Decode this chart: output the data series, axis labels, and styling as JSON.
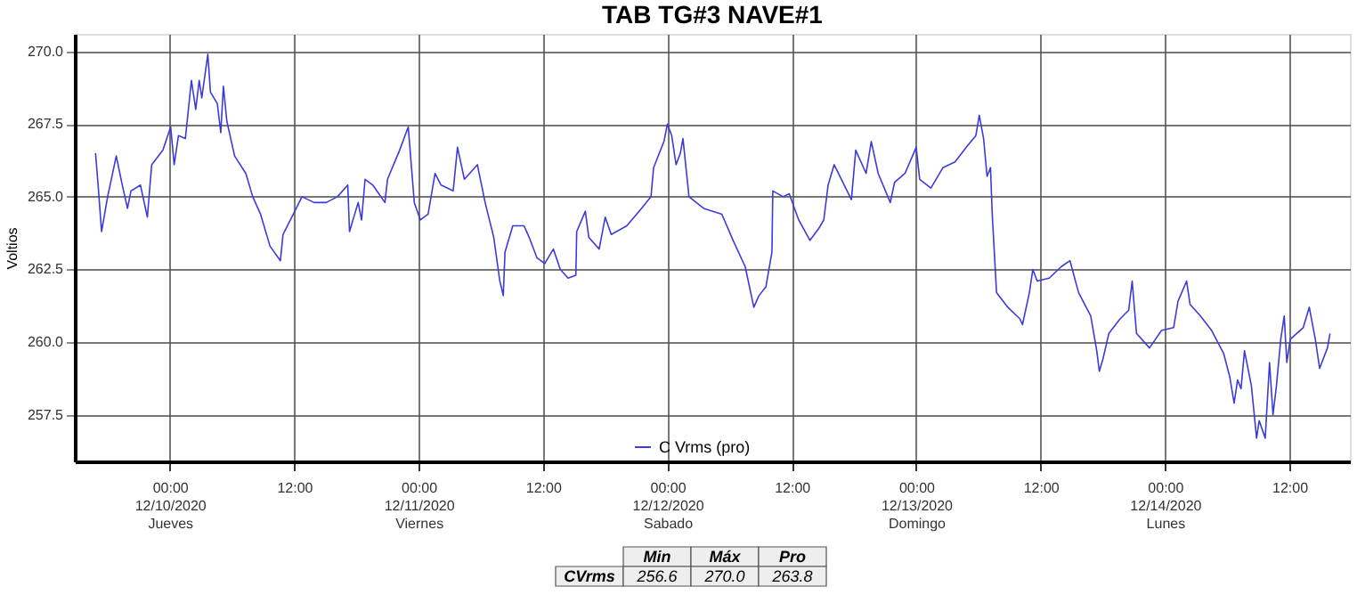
{
  "chart_data": {
    "type": "line",
    "title": "TAB TG#3 NAVE#1",
    "ylabel": "Voltios",
    "series": [
      {
        "name": "C Vrms (pro)",
        "color": "#3b3bdc",
        "x": [
          "2020-12-09T16:50",
          "2020-12-09T17:05",
          "2020-12-09T17:25",
          "2020-12-09T18:00",
          "2020-12-09T18:50",
          "2020-12-09T19:25",
          "2020-12-09T19:55",
          "2020-12-09T20:15",
          "2020-12-09T21:10",
          "2020-12-09T21:50",
          "2020-12-09T22:15",
          "2020-12-09T23:20",
          "2020-12-10T00:05",
          "2020-12-10T00:25",
          "2020-12-10T00:50",
          "2020-12-10T01:30",
          "2020-12-10T02:05",
          "2020-12-10T02:30",
          "2020-12-10T02:50",
          "2020-12-10T03:05",
          "2020-12-10T03:40",
          "2020-12-10T03:55",
          "2020-12-10T04:35",
          "2020-12-10T04:55",
          "2020-12-10T05:10",
          "2020-12-10T05:30",
          "2020-12-10T06:15",
          "2020-12-10T07:20",
          "2020-12-10T08:00",
          "2020-12-10T08:45",
          "2020-12-10T09:40",
          "2020-12-10T10:40",
          "2020-12-10T10:55",
          "2020-12-10T11:55",
          "2020-12-10T12:45",
          "2020-12-10T13:55",
          "2020-12-10T15:05",
          "2020-12-10T16:10",
          "2020-12-10T17:10",
          "2020-12-10T17:20",
          "2020-12-10T18:10",
          "2020-12-10T18:30",
          "2020-12-10T18:50",
          "2020-12-10T19:35",
          "2020-12-10T20:45",
          "2020-12-10T21:00",
          "2020-12-10T22:10",
          "2020-12-10T23:00",
          "2020-12-10T23:35",
          "2020-12-11T00:10",
          "2020-12-11T00:55",
          "2020-12-11T01:35",
          "2020-12-11T02:10",
          "2020-12-11T03:20",
          "2020-12-11T03:45",
          "2020-12-11T04:25",
          "2020-12-11T05:40",
          "2020-12-11T06:25",
          "2020-12-11T07:15",
          "2020-12-11T07:50",
          "2020-12-11T08:10",
          "2020-12-11T08:20",
          "2020-12-11T09:05",
          "2020-12-11T10:10",
          "2020-12-11T10:40",
          "2020-12-11T11:25",
          "2020-12-11T12:10",
          "2020-12-11T13:00",
          "2020-12-11T13:40",
          "2020-12-11T14:25",
          "2020-12-11T15:10",
          "2020-12-11T15:15",
          "2020-12-11T16:05",
          "2020-12-11T16:25",
          "2020-12-11T17:25",
          "2020-12-11T18:00",
          "2020-12-11T18:35",
          "2020-12-11T20:05",
          "2020-12-11T21:30",
          "2020-12-11T22:25",
          "2020-12-11T22:40",
          "2020-12-11T23:40",
          "2020-12-12T00:00",
          "2020-12-12T00:25",
          "2020-12-12T00:50",
          "2020-12-12T01:15",
          "2020-12-12T01:30",
          "2020-12-12T02:05",
          "2020-12-12T03:30",
          "2020-12-12T05:15",
          "2020-12-12T06:20",
          "2020-12-12T07:30",
          "2020-12-12T08:20",
          "2020-12-12T08:50",
          "2020-12-12T09:30",
          "2020-12-12T10:05",
          "2020-12-12T10:10",
          "2020-12-12T11:10",
          "2020-12-12T11:45",
          "2020-12-12T12:40",
          "2020-12-12T13:45",
          "2020-12-12T14:35",
          "2020-12-12T15:05",
          "2020-12-12T15:30",
          "2020-12-12T16:05",
          "2020-12-12T17:45",
          "2020-12-12T18:10",
          "2020-12-12T19:10",
          "2020-12-12T19:40",
          "2020-12-12T20:20",
          "2020-12-12T21:30",
          "2020-12-12T21:55",
          "2020-12-12T22:55",
          "2020-12-13T00:00",
          "2020-12-13T00:20",
          "2020-12-13T01:25",
          "2020-12-13T02:35",
          "2020-12-13T03:45",
          "2020-12-13T04:50",
          "2020-12-13T05:45",
          "2020-12-13T06:05",
          "2020-12-13T06:30",
          "2020-12-13T06:50",
          "2020-12-13T07:10",
          "2020-12-13T07:20",
          "2020-12-13T07:45",
          "2020-12-13T08:50",
          "2020-12-13T10:00",
          "2020-12-13T10:15",
          "2020-12-13T10:55",
          "2020-12-13T11:15",
          "2020-12-13T11:40",
          "2020-12-13T12:50",
          "2020-12-13T14:00",
          "2020-12-13T14:50",
          "2020-12-13T15:40",
          "2020-12-13T16:50",
          "2020-12-13T17:25",
          "2020-12-13T17:40",
          "2020-12-13T18:00",
          "2020-12-13T18:35",
          "2020-12-13T19:40",
          "2020-12-13T20:30",
          "2020-12-13T20:50",
          "2020-12-13T21:15",
          "2020-12-13T22:30",
          "2020-12-13T23:40",
          "2020-12-14T00:50",
          "2020-12-14T01:15",
          "2020-12-14T02:05",
          "2020-12-14T02:25",
          "2020-12-14T03:25",
          "2020-12-14T04:30",
          "2020-12-14T05:40",
          "2020-12-14T06:15",
          "2020-12-14T06:40",
          "2020-12-14T07:00",
          "2020-12-14T07:20",
          "2020-12-14T07:40",
          "2020-12-14T08:20",
          "2020-12-14T08:50",
          "2020-12-14T09:05",
          "2020-12-14T09:40",
          "2020-12-14T10:05",
          "2020-12-14T10:25",
          "2020-12-14T10:45",
          "2020-12-14T11:10",
          "2020-12-14T11:30",
          "2020-12-14T11:45",
          "2020-12-14T12:05",
          "2020-12-14T13:20",
          "2020-12-14T13:55",
          "2020-12-14T14:30",
          "2020-12-14T14:55",
          "2020-12-14T15:40",
          "2020-12-14T15:55"
        ],
        "values": [
          266.5,
          265.4,
          263.8,
          265.0,
          266.4,
          265.4,
          264.6,
          265.2,
          265.4,
          264.3,
          266.1,
          266.6,
          267.4,
          266.1,
          267.1,
          267.0,
          269.0,
          268.0,
          269.0,
          268.4,
          269.9,
          268.6,
          268.2,
          267.2,
          268.8,
          267.6,
          266.4,
          265.8,
          265.0,
          264.4,
          263.3,
          262.8,
          263.7,
          264.4,
          265.0,
          264.8,
          264.8,
          265.0,
          265.4,
          263.8,
          264.8,
          264.2,
          265.6,
          265.4,
          264.8,
          265.6,
          266.6,
          267.4,
          264.8,
          264.2,
          264.4,
          265.8,
          265.4,
          265.2,
          266.7,
          265.6,
          266.1,
          264.8,
          263.6,
          262.1,
          261.6,
          263.1,
          264.0,
          264.0,
          263.6,
          262.9,
          262.7,
          263.2,
          262.5,
          262.2,
          262.3,
          263.8,
          264.5,
          263.6,
          263.2,
          264.3,
          263.7,
          264.0,
          264.6,
          265.0,
          266.0,
          266.9,
          267.5,
          267.1,
          266.1,
          266.5,
          267.0,
          265.0,
          264.6,
          264.4,
          263.5,
          262.6,
          261.2,
          261.6,
          261.9,
          263.1,
          265.2,
          265.0,
          265.1,
          264.2,
          263.5,
          263.9,
          264.2,
          265.4,
          266.1,
          264.9,
          266.6,
          265.8,
          266.9,
          265.8,
          264.8,
          265.5,
          265.8,
          266.7,
          265.6,
          265.3,
          266.0,
          266.2,
          266.7,
          267.1,
          267.8,
          267.0,
          265.7,
          266.0,
          264.4,
          261.7,
          261.2,
          260.8,
          260.6,
          261.7,
          262.5,
          262.1,
          262.2,
          262.6,
          262.8,
          261.7,
          260.9,
          259.7,
          259.0,
          259.4,
          260.3,
          260.8,
          261.1,
          262.1,
          260.3,
          259.8,
          260.4,
          260.5,
          261.4,
          262.1,
          261.3,
          260.9,
          260.4,
          259.6,
          258.8,
          257.9,
          258.7,
          258.4,
          259.7,
          258.5,
          256.7,
          257.3,
          256.7,
          259.3,
          257.5,
          258.5,
          260.1,
          260.9,
          259.3,
          260.1,
          260.5,
          261.2,
          260.1,
          259.1,
          259.8,
          260.3
        ]
      }
    ],
    "xlim": [
      "2020-12-09T14:50",
      "2020-12-14T17:50"
    ],
    "xticks": [
      {
        "value": "2020-12-10T00:00",
        "label": "00:00\n12/10/2020\nJueves"
      },
      {
        "value": "2020-12-10T12:00",
        "label": "12:00"
      },
      {
        "value": "2020-12-11T00:00",
        "label": "00:00\n12/11/2020\nViernes"
      },
      {
        "value": "2020-12-11T12:00",
        "label": "12:00"
      },
      {
        "value": "2020-12-12T00:00",
        "label": "00:00\n12/12/2020\nSabado"
      },
      {
        "value": "2020-12-12T12:00",
        "label": "12:00"
      },
      {
        "value": "2020-12-13T00:00",
        "label": "00:00\n12/13/2020\nDomingo"
      },
      {
        "value": "2020-12-13T12:00",
        "label": "12:00"
      },
      {
        "value": "2020-12-14T00:00",
        "label": "00:00\n12/14/2020\nLunes"
      },
      {
        "value": "2020-12-14T12:00",
        "label": "12:00"
      }
    ],
    "ylim": [
      255.9,
      270.6
    ],
    "yticks": [
      {
        "value": 257.5,
        "label": "257.5"
      },
      {
        "value": 260,
        "label": "260.0"
      },
      {
        "value": 262.5,
        "label": "262.5"
      },
      {
        "value": 265,
        "label": "265.0"
      },
      {
        "value": 267.5,
        "label": "267.5"
      },
      {
        "value": 270,
        "label": "270.0"
      }
    ],
    "grid": true,
    "legend": "bottom",
    "marker": "none",
    "line_style": "solid",
    "annotations": [
      "Min",
      "Máx",
      "Pro",
      "CVrms",
      "256.6",
      "270.0",
      "263.8"
    ]
  }
}
